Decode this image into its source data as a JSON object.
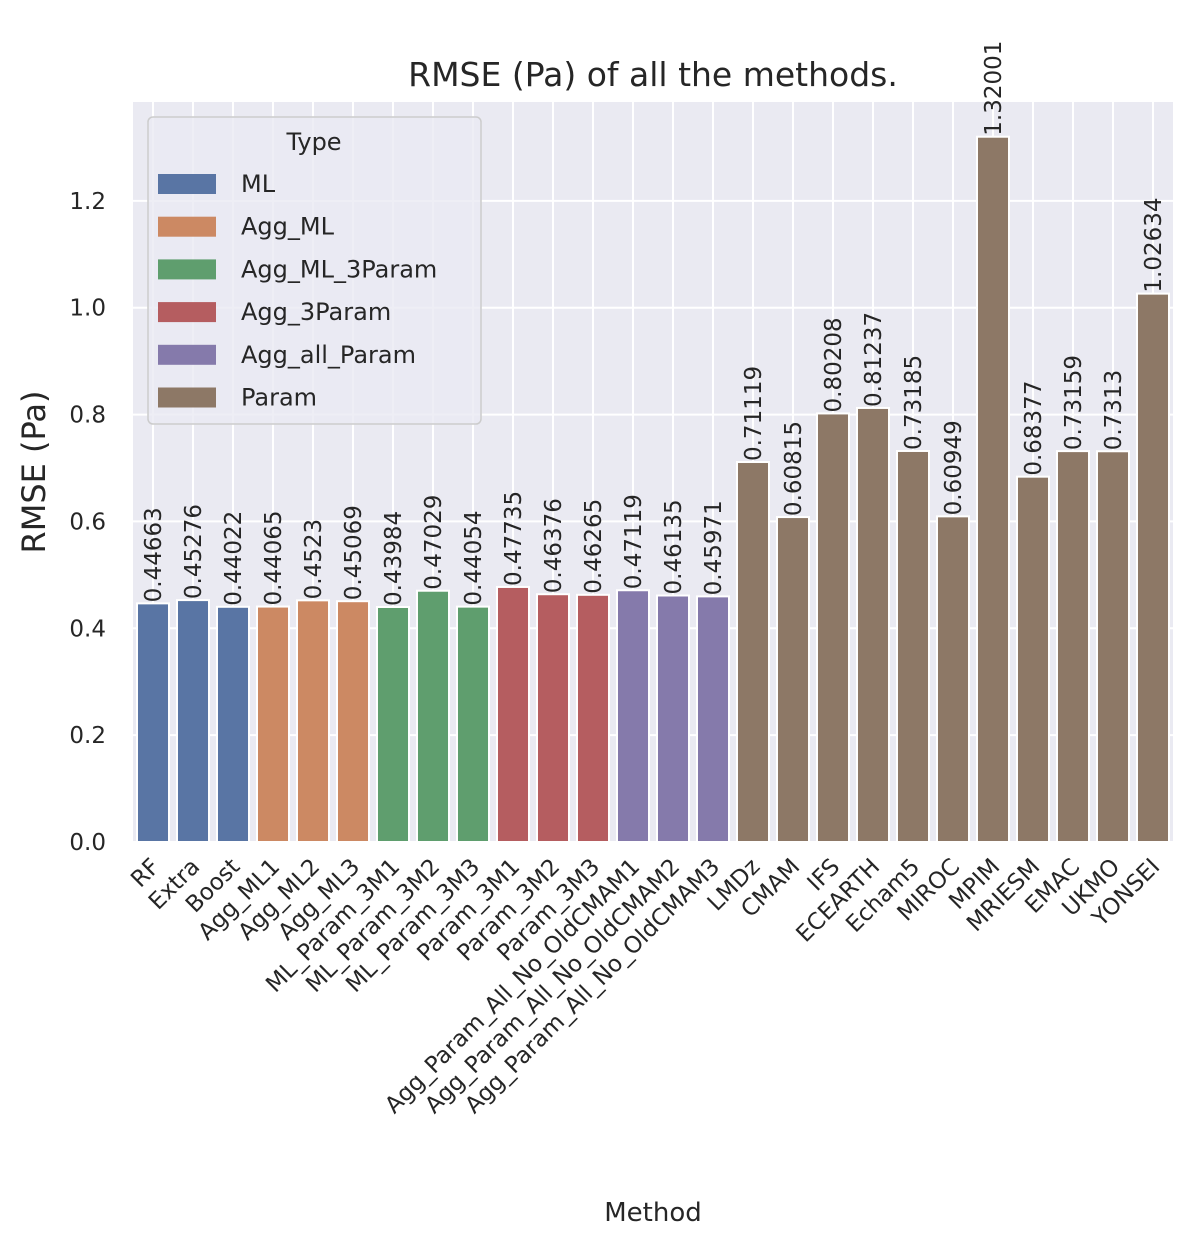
{
  "chart_data": {
    "type": "bar",
    "title": "RMSE (Pa) of all the methods.",
    "xlabel": "Method",
    "ylabel": "RMSE (Pa)",
    "ylim": [
      0,
      1.385
    ],
    "yticks": [
      "0.0",
      "0.2",
      "0.4",
      "0.6",
      "0.8",
      "1.0",
      "1.2"
    ],
    "grid": true,
    "legend": {
      "title": "Type",
      "placement": "top-left",
      "entries": [
        {
          "name": "ML",
          "color": "#5975a4"
        },
        {
          "name": "Agg_ML",
          "color": "#cc8963"
        },
        {
          "name": "Agg_ML_3Param",
          "color": "#5f9e6e"
        },
        {
          "name": "Agg_3Param",
          "color": "#b55d60"
        },
        {
          "name": "Agg_all_Param",
          "color": "#857aab"
        },
        {
          "name": "Param",
          "color": "#8d7866"
        }
      ]
    },
    "bars": [
      {
        "category": "RF",
        "value": 0.44663,
        "label": "0.44663",
        "type": 0
      },
      {
        "category": "Extra",
        "value": 0.45276,
        "label": "0.45276",
        "type": 0
      },
      {
        "category": "Boost",
        "value": 0.44022,
        "label": "0.44022",
        "type": 0
      },
      {
        "category": "Agg_ML1",
        "value": 0.44065,
        "label": "0.44065",
        "type": 1
      },
      {
        "category": "Agg_ML2",
        "value": 0.4523,
        "label": "0.4523",
        "type": 1
      },
      {
        "category": "Agg_ML3",
        "value": 0.45069,
        "label": "0.45069",
        "type": 1
      },
      {
        "category": "ML_Param_3M1",
        "value": 0.43984,
        "label": "0.43984",
        "type": 2
      },
      {
        "category": "ML_Param_3M2",
        "value": 0.47029,
        "label": "0.47029",
        "type": 2
      },
      {
        "category": "ML_Param_3M3",
        "value": 0.44054,
        "label": "0.44054",
        "type": 2
      },
      {
        "category": "Param_3M1",
        "value": 0.47735,
        "label": "0.47735",
        "type": 3
      },
      {
        "category": "Param_3M2",
        "value": 0.46376,
        "label": "0.46376",
        "type": 3
      },
      {
        "category": "Param_3M3",
        "value": 0.46265,
        "label": "0.46265",
        "type": 3
      },
      {
        "category": "Agg_Param_All_No_OldCMAM1",
        "value": 0.47119,
        "label": "0.47119",
        "type": 4
      },
      {
        "category": "Agg_Param_All_No_OldCMAM2",
        "value": 0.46135,
        "label": "0.46135",
        "type": 4
      },
      {
        "category": "Agg_Param_All_No_OldCMAM3",
        "value": 0.45971,
        "label": "0.45971",
        "type": 4
      },
      {
        "category": "LMDz",
        "value": 0.71119,
        "label": "0.71119",
        "type": 5
      },
      {
        "category": "CMAM",
        "value": 0.60815,
        "label": "0.60815",
        "type": 5
      },
      {
        "category": "IFS",
        "value": 0.80208,
        "label": "0.80208",
        "type": 5
      },
      {
        "category": "ECEARTH",
        "value": 0.81237,
        "label": "0.81237",
        "type": 5
      },
      {
        "category": "Echam5",
        "value": 0.73185,
        "label": "0.73185",
        "type": 5
      },
      {
        "category": "MIROC",
        "value": 0.60949,
        "label": "0.60949",
        "type": 5
      },
      {
        "category": "MPIM",
        "value": 1.32001,
        "label": "1.32001",
        "type": 5
      },
      {
        "category": "MRIESM",
        "value": 0.68377,
        "label": "0.68377",
        "type": 5
      },
      {
        "category": "EMAC",
        "value": 0.73159,
        "label": "0.73159",
        "type": 5
      },
      {
        "category": "UKMO",
        "value": 0.7313,
        "label": "0.7313",
        "type": 5
      },
      {
        "category": "YONSEI",
        "value": 1.02634,
        "label": "1.02634",
        "type": 5
      }
    ]
  }
}
